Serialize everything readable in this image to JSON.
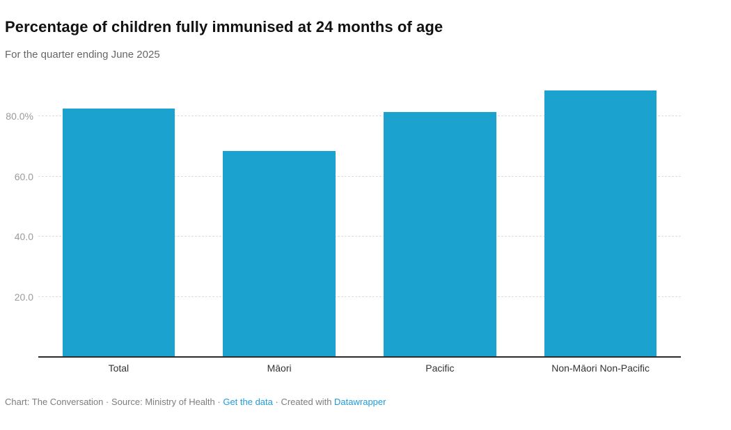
{
  "header": {
    "title": "Percentage of children fully immunised at 24 months of age",
    "subtitle": "For the quarter ending June 2025"
  },
  "chart_data": {
    "type": "bar",
    "title": "Percentage of children fully immunised at 24 months of age",
    "subtitle": "For the quarter ending June 2025",
    "categories": [
      "Total",
      "Māori",
      "Pacific",
      "Non-Māori Non-Pacific"
    ],
    "values": [
      82.5,
      68.4,
      81.5,
      88.5
    ],
    "unit": "%",
    "xlabel": "",
    "ylabel": "",
    "ylim": [
      0,
      95.5
    ],
    "grid": true,
    "legend": "none",
    "y_ticks": [
      {
        "value": 20,
        "label": "20.0"
      },
      {
        "value": 40,
        "label": "40.0"
      },
      {
        "value": 60,
        "label": "60.0"
      },
      {
        "value": 80,
        "label": "80.0%"
      }
    ],
    "bar_color": "#1ca2cf"
  },
  "footer": {
    "text_before": "Chart: The Conversation · Source: Ministry of Health · ",
    "link_get_data": "Get the data",
    "text_middle": " · Created with ",
    "link_datawrapper": "Datawrapper"
  },
  "colors": {
    "bar": "#1ca2cf",
    "grid": "#dcdcdc",
    "axis": "#2b2b2b",
    "title": "#111111",
    "subtitle": "#666666",
    "tick": "#9a9a9a",
    "cat": "#333333",
    "footer": "#7d7d7d",
    "link": "#1e9cd7"
  }
}
